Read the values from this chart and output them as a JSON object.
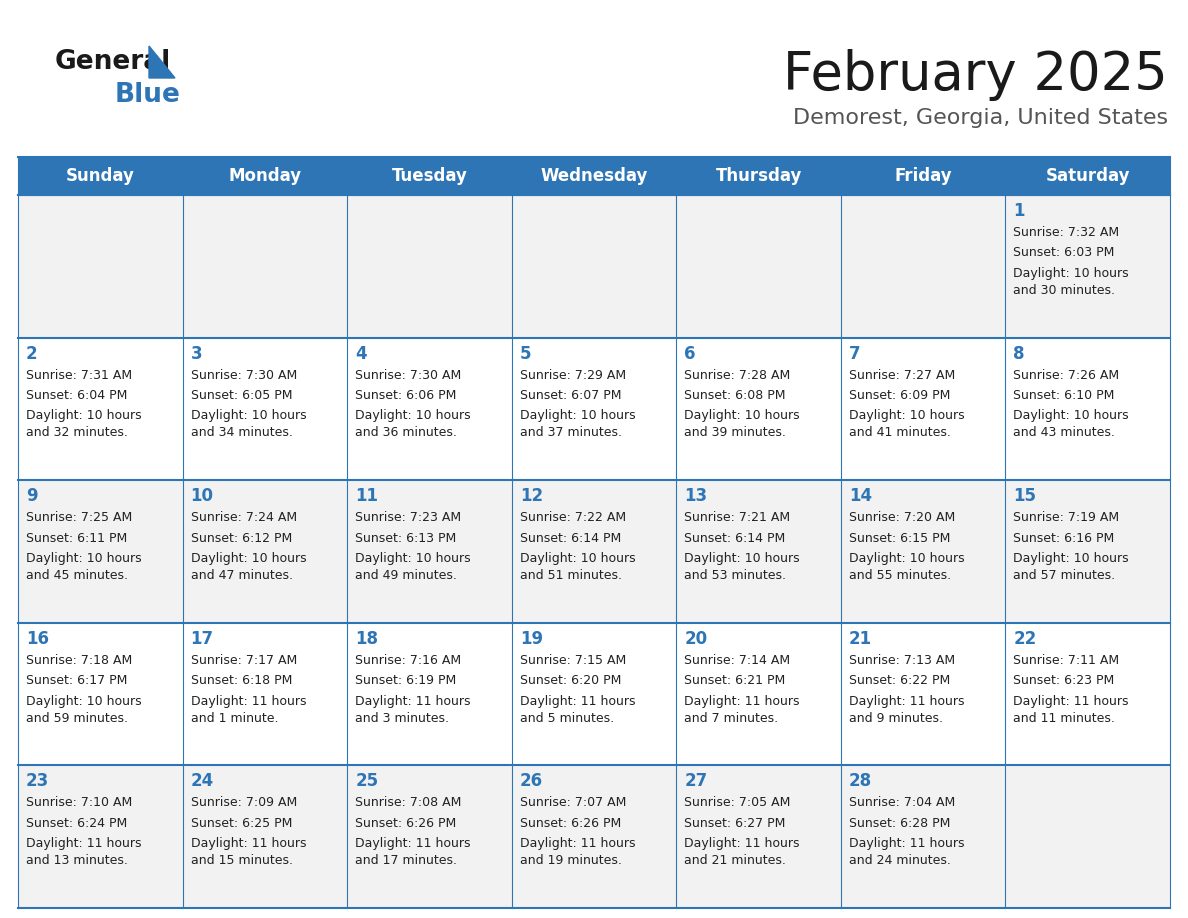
{
  "title": "February 2025",
  "subtitle": "Demorest, Georgia, United States",
  "days_of_week": [
    "Sunday",
    "Monday",
    "Tuesday",
    "Wednesday",
    "Thursday",
    "Friday",
    "Saturday"
  ],
  "header_bg": "#2E75B6",
  "header_text": "#FFFFFF",
  "cell_bg_odd": "#F2F2F2",
  "cell_bg_even": "#FFFFFF",
  "border_color": "#2E75B6",
  "text_color": "#222222",
  "day_num_color": "#2E75B6",
  "logo_general_color": "#1a1a1a",
  "logo_blue_color": "#2E75B6",
  "title_color": "#1a1a1a",
  "subtitle_color": "#555555",
  "calendar_data": [
    [
      {
        "day": null,
        "sunrise": null,
        "sunset": null,
        "daylight": null
      },
      {
        "day": null,
        "sunrise": null,
        "sunset": null,
        "daylight": null
      },
      {
        "day": null,
        "sunrise": null,
        "sunset": null,
        "daylight": null
      },
      {
        "day": null,
        "sunrise": null,
        "sunset": null,
        "daylight": null
      },
      {
        "day": null,
        "sunrise": null,
        "sunset": null,
        "daylight": null
      },
      {
        "day": null,
        "sunrise": null,
        "sunset": null,
        "daylight": null
      },
      {
        "day": 1,
        "sunrise": "7:32 AM",
        "sunset": "6:03 PM",
        "daylight": "10 hours\nand 30 minutes."
      }
    ],
    [
      {
        "day": 2,
        "sunrise": "7:31 AM",
        "sunset": "6:04 PM",
        "daylight": "10 hours\nand 32 minutes."
      },
      {
        "day": 3,
        "sunrise": "7:30 AM",
        "sunset": "6:05 PM",
        "daylight": "10 hours\nand 34 minutes."
      },
      {
        "day": 4,
        "sunrise": "7:30 AM",
        "sunset": "6:06 PM",
        "daylight": "10 hours\nand 36 minutes."
      },
      {
        "day": 5,
        "sunrise": "7:29 AM",
        "sunset": "6:07 PM",
        "daylight": "10 hours\nand 37 minutes."
      },
      {
        "day": 6,
        "sunrise": "7:28 AM",
        "sunset": "6:08 PM",
        "daylight": "10 hours\nand 39 minutes."
      },
      {
        "day": 7,
        "sunrise": "7:27 AM",
        "sunset": "6:09 PM",
        "daylight": "10 hours\nand 41 minutes."
      },
      {
        "day": 8,
        "sunrise": "7:26 AM",
        "sunset": "6:10 PM",
        "daylight": "10 hours\nand 43 minutes."
      }
    ],
    [
      {
        "day": 9,
        "sunrise": "7:25 AM",
        "sunset": "6:11 PM",
        "daylight": "10 hours\nand 45 minutes."
      },
      {
        "day": 10,
        "sunrise": "7:24 AM",
        "sunset": "6:12 PM",
        "daylight": "10 hours\nand 47 minutes."
      },
      {
        "day": 11,
        "sunrise": "7:23 AM",
        "sunset": "6:13 PM",
        "daylight": "10 hours\nand 49 minutes."
      },
      {
        "day": 12,
        "sunrise": "7:22 AM",
        "sunset": "6:14 PM",
        "daylight": "10 hours\nand 51 minutes."
      },
      {
        "day": 13,
        "sunrise": "7:21 AM",
        "sunset": "6:14 PM",
        "daylight": "10 hours\nand 53 minutes."
      },
      {
        "day": 14,
        "sunrise": "7:20 AM",
        "sunset": "6:15 PM",
        "daylight": "10 hours\nand 55 minutes."
      },
      {
        "day": 15,
        "sunrise": "7:19 AM",
        "sunset": "6:16 PM",
        "daylight": "10 hours\nand 57 minutes."
      }
    ],
    [
      {
        "day": 16,
        "sunrise": "7:18 AM",
        "sunset": "6:17 PM",
        "daylight": "10 hours\nand 59 minutes."
      },
      {
        "day": 17,
        "sunrise": "7:17 AM",
        "sunset": "6:18 PM",
        "daylight": "11 hours\nand 1 minute."
      },
      {
        "day": 18,
        "sunrise": "7:16 AM",
        "sunset": "6:19 PM",
        "daylight": "11 hours\nand 3 minutes."
      },
      {
        "day": 19,
        "sunrise": "7:15 AM",
        "sunset": "6:20 PM",
        "daylight": "11 hours\nand 5 minutes."
      },
      {
        "day": 20,
        "sunrise": "7:14 AM",
        "sunset": "6:21 PM",
        "daylight": "11 hours\nand 7 minutes."
      },
      {
        "day": 21,
        "sunrise": "7:13 AM",
        "sunset": "6:22 PM",
        "daylight": "11 hours\nand 9 minutes."
      },
      {
        "day": 22,
        "sunrise": "7:11 AM",
        "sunset": "6:23 PM",
        "daylight": "11 hours\nand 11 minutes."
      }
    ],
    [
      {
        "day": 23,
        "sunrise": "7:10 AM",
        "sunset": "6:24 PM",
        "daylight": "11 hours\nand 13 minutes."
      },
      {
        "day": 24,
        "sunrise": "7:09 AM",
        "sunset": "6:25 PM",
        "daylight": "11 hours\nand 15 minutes."
      },
      {
        "day": 25,
        "sunrise": "7:08 AM",
        "sunset": "6:26 PM",
        "daylight": "11 hours\nand 17 minutes."
      },
      {
        "day": 26,
        "sunrise": "7:07 AM",
        "sunset": "6:26 PM",
        "daylight": "11 hours\nand 19 minutes."
      },
      {
        "day": 27,
        "sunrise": "7:05 AM",
        "sunset": "6:27 PM",
        "daylight": "11 hours\nand 21 minutes."
      },
      {
        "day": 28,
        "sunrise": "7:04 AM",
        "sunset": "6:28 PM",
        "daylight": "11 hours\nand 24 minutes."
      },
      {
        "day": null,
        "sunrise": null,
        "sunset": null,
        "daylight": null
      }
    ]
  ]
}
